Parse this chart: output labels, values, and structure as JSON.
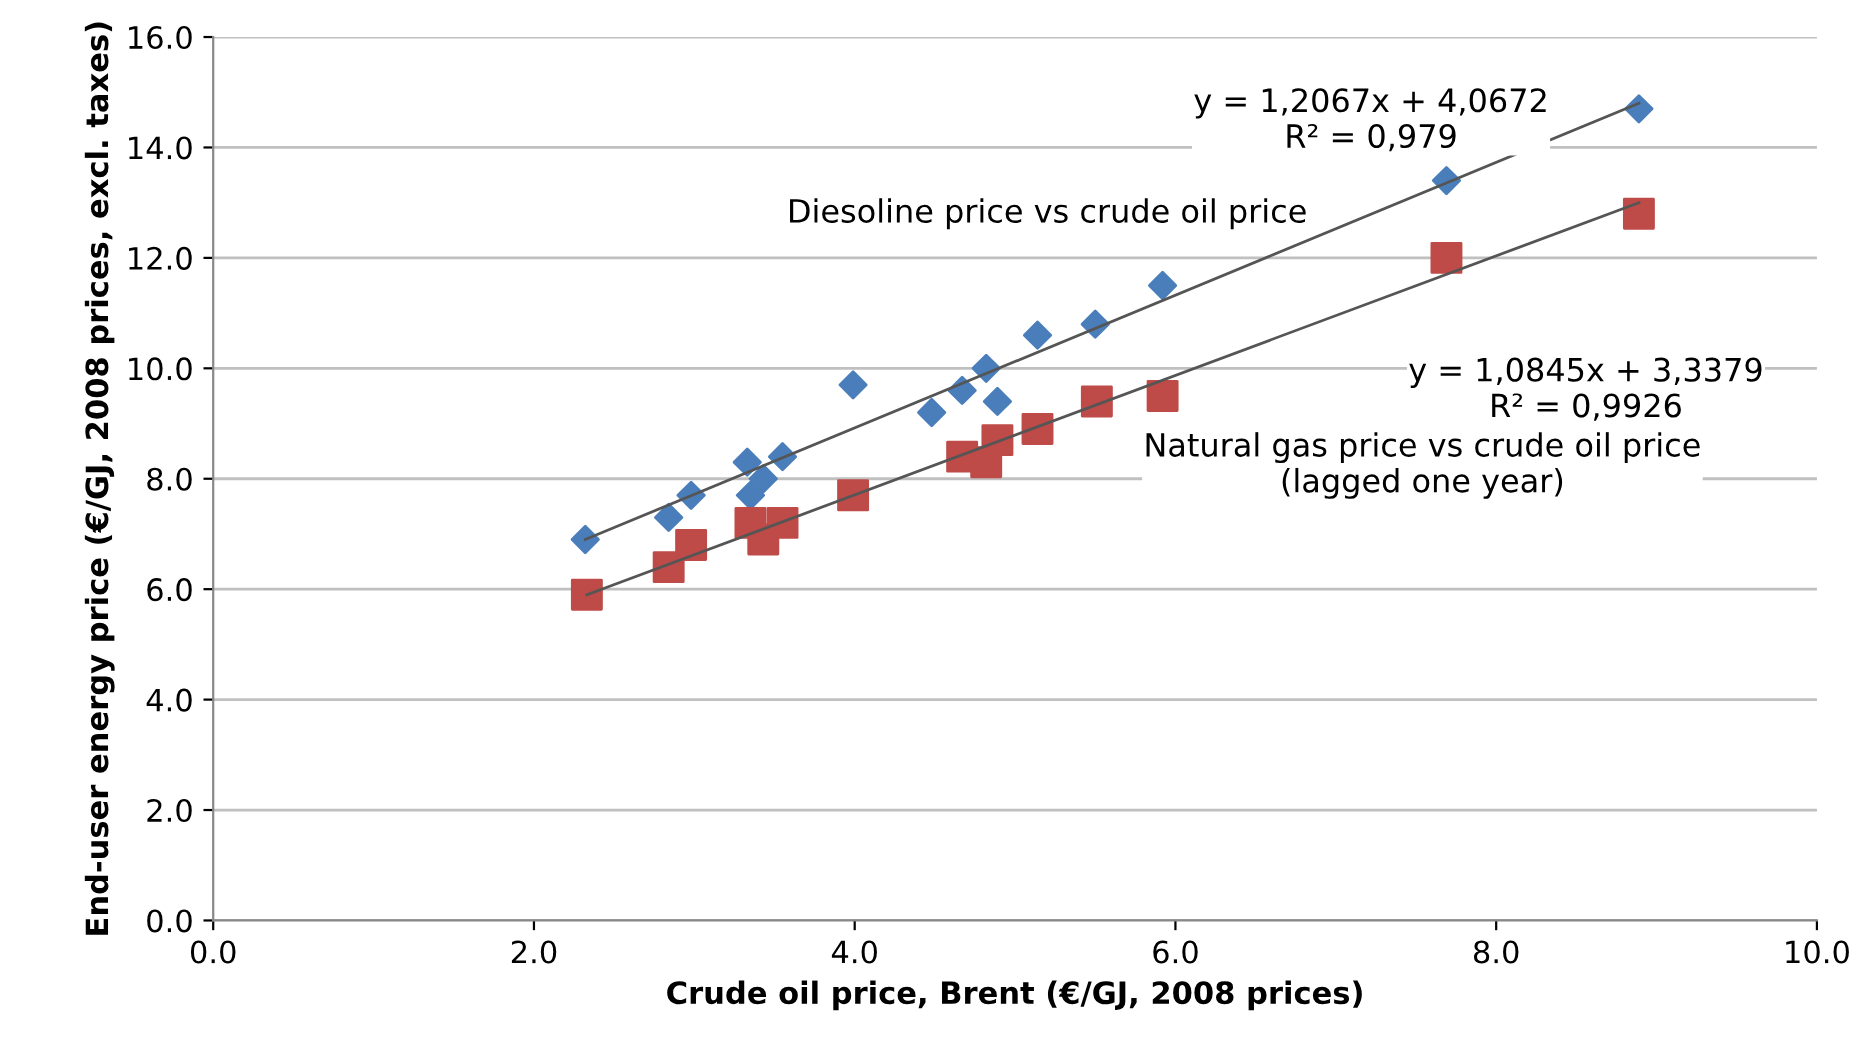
{
  "chart_data": {
    "type": "scatter",
    "xlabel": "Crude oil price, Brent (€/GJ, 2008 prices)",
    "ylabel": "End-user energy price (€/GJ, 2008 prices, excl. taxes)",
    "xlim": [
      0,
      10
    ],
    "xticks": [
      {
        "value": 0,
        "label": "0.0"
      },
      {
        "value": 2,
        "label": "2.0"
      },
      {
        "value": 4,
        "label": "4.0"
      },
      {
        "value": 6,
        "label": "6.0"
      },
      {
        "value": 8,
        "label": "8.0"
      },
      {
        "value": 10,
        "label": "10.0"
      }
    ],
    "ylim": [
      0,
      16
    ],
    "yticks": [
      {
        "value": 0,
        "label": "0.0"
      },
      {
        "value": 2,
        "label": "2.0"
      },
      {
        "value": 4,
        "label": "4.0"
      },
      {
        "value": 6,
        "label": "6.0"
      },
      {
        "value": 8,
        "label": "8.0"
      },
      {
        "value": 10,
        "label": "10.0"
      },
      {
        "value": 12,
        "label": "12.0"
      },
      {
        "value": 14,
        "label": "14.0"
      },
      {
        "value": 16,
        "label": "16.0"
      }
    ],
    "grid": "y",
    "legend": false,
    "series": [
      {
        "marker": "diamond",
        "color": "#4a7ebb",
        "x": [
          2.32,
          2.84,
          2.98,
          3.33,
          3.35,
          3.43,
          3.55,
          3.99,
          4.48,
          4.67,
          4.82,
          4.89,
          5.14,
          5.5,
          5.92,
          7.69,
          8.89
        ],
        "values": [
          6.9,
          7.3,
          7.7,
          8.3,
          7.7,
          8.0,
          8.4,
          9.7,
          9.2,
          9.6,
          10.0,
          9.4,
          10.6,
          10.8,
          11.5,
          13.4,
          14.7
        ]
      },
      {
        "marker": "square",
        "color": "#be4b48",
        "x": [
          2.33,
          2.84,
          2.98,
          3.35,
          3.43,
          3.55,
          3.99,
          4.67,
          4.82,
          4.89,
          5.14,
          5.51,
          5.92,
          7.69,
          8.89
        ],
        "values": [
          5.9,
          6.4,
          6.8,
          7.2,
          6.9,
          7.2,
          7.7,
          8.4,
          8.3,
          8.7,
          8.9,
          9.4,
          9.5,
          12.0,
          12.8
        ]
      },
      {
        "type": "line",
        "marker": "none",
        "color": "#555555",
        "x": [
          2.32,
          8.89
        ],
        "values": [
          6.9,
          14.8
        ]
      },
      {
        "type": "line",
        "marker": "none",
        "color": "#555555",
        "x": [
          2.33,
          8.89
        ],
        "values": [
          5.9,
          13.0
        ]
      }
    ],
    "annotations": [
      "Diesoline price vs crude oil price",
      "y = 1,2067x + 4,0672\nR² = 0,979",
      "y = 1,0845x + 3,3379\nR² = 0,9926",
      "Natural gas price vs crude oil price\n(lagged one year)"
    ]
  }
}
